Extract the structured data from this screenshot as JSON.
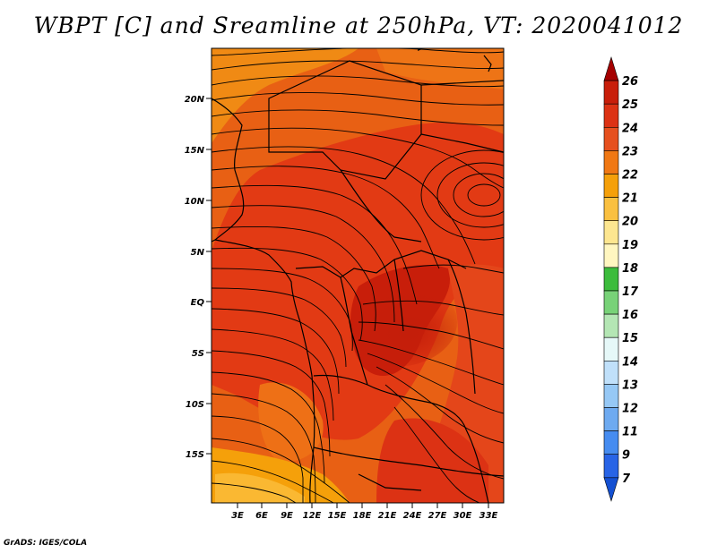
{
  "title": "WBPT [C] and Sreamline at 250hPa, VT: 2020041012",
  "credit": "GrADS: IGES/COLA",
  "lat_labels": [
    "20N",
    "15N",
    "10N",
    "5N",
    "EQ",
    "5S",
    "10S",
    "15S"
  ],
  "lon_labels": [
    "3E",
    "6E",
    "9E",
    "12E",
    "15E",
    "18E",
    "21E",
    "24E",
    "27E",
    "30E",
    "33E"
  ],
  "colorbar": {
    "levels": [
      "26",
      "25",
      "24",
      "23",
      "22",
      "21",
      "20",
      "19",
      "18",
      "17",
      "16",
      "15",
      "14",
      "13",
      "12",
      "11",
      "9",
      "7"
    ],
    "colors": [
      "#a50000",
      "#c81e0a",
      "#dc3214",
      "#e6501e",
      "#f07814",
      "#f5a00a",
      "#fac040",
      "#fde690",
      "#fff6c0",
      "#3cbc3c",
      "#78d278",
      "#b4e6b4",
      "#e6f8f8",
      "#c0e0fa",
      "#96c8f5",
      "#6eaaf0",
      "#468cf0",
      "#2864e6",
      "#1450d2"
    ]
  }
}
